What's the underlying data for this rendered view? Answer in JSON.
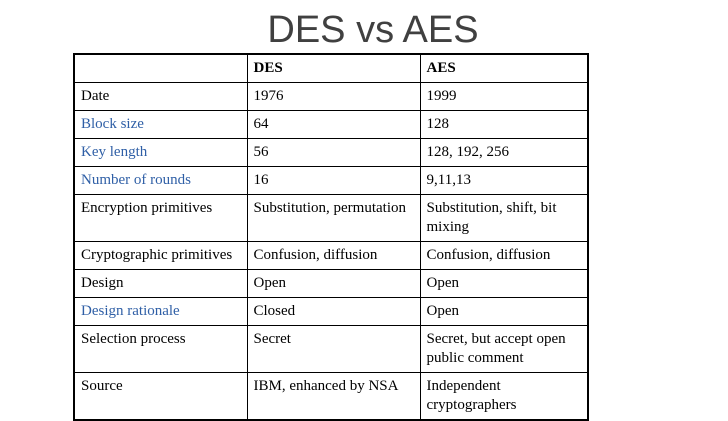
{
  "title": "DES vs AES",
  "columns": [
    "",
    "DES",
    "AES"
  ],
  "rows": [
    {
      "label": "Date",
      "des": "1976",
      "aes": "1999",
      "highlight": false
    },
    {
      "label": "Block size",
      "des": "64",
      "aes": "128",
      "highlight": true
    },
    {
      "label": "Key length",
      "des": "56",
      "aes": "128, 192, 256",
      "highlight": true
    },
    {
      "label": "Number of rounds",
      "des": "16",
      "aes": "9,11,13",
      "highlight": true
    },
    {
      "label": "Encryption primitives",
      "des": "Substitution, permutation",
      "aes": "Substitution, shift, bit mixing",
      "highlight": false
    },
    {
      "label": "Cryptographic primitives",
      "des": "Confusion, diffusion",
      "aes": "Confusion, diffusion",
      "highlight": false
    },
    {
      "label": "Design",
      "des": "Open",
      "aes": "Open",
      "highlight": false
    },
    {
      "label": "Design rationale",
      "des": "Closed",
      "aes": "Open",
      "highlight": true
    },
    {
      "label": "Selection process",
      "des": "Secret",
      "aes": "Secret, but accept open public comment",
      "highlight": false
    },
    {
      "label": "Source",
      "des": "IBM, enhanced by NSA",
      "aes": "Independent cryptographers",
      "highlight": false
    }
  ],
  "colors": {
    "highlight_label": "#2f5fa6",
    "title": "#404040"
  }
}
